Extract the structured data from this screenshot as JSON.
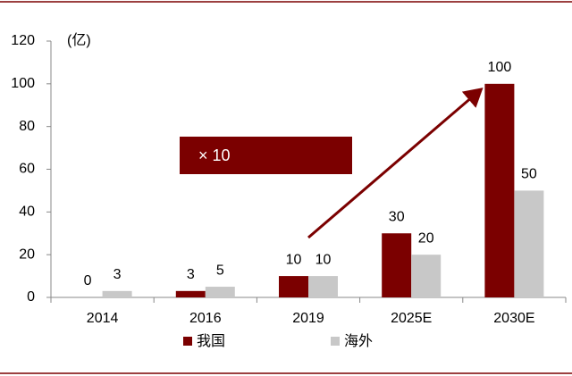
{
  "chart_data": {
    "type": "bar",
    "unit_label": "(亿)",
    "annotation": "× 10",
    "categories": [
      "2014",
      "2016",
      "2019",
      "2025E",
      "2030E"
    ],
    "series": [
      {
        "name": "我国",
        "color": "#7b0000",
        "values": [
          0,
          3,
          10,
          30,
          100
        ]
      },
      {
        "name": "海外",
        "color": "#c8c8c8",
        "values": [
          3,
          5,
          10,
          20,
          50
        ]
      }
    ],
    "ylim": [
      0,
      120
    ],
    "yticks": [
      0,
      20,
      40,
      60,
      80,
      100,
      120
    ],
    "grid": false,
    "legend": "bottom"
  }
}
